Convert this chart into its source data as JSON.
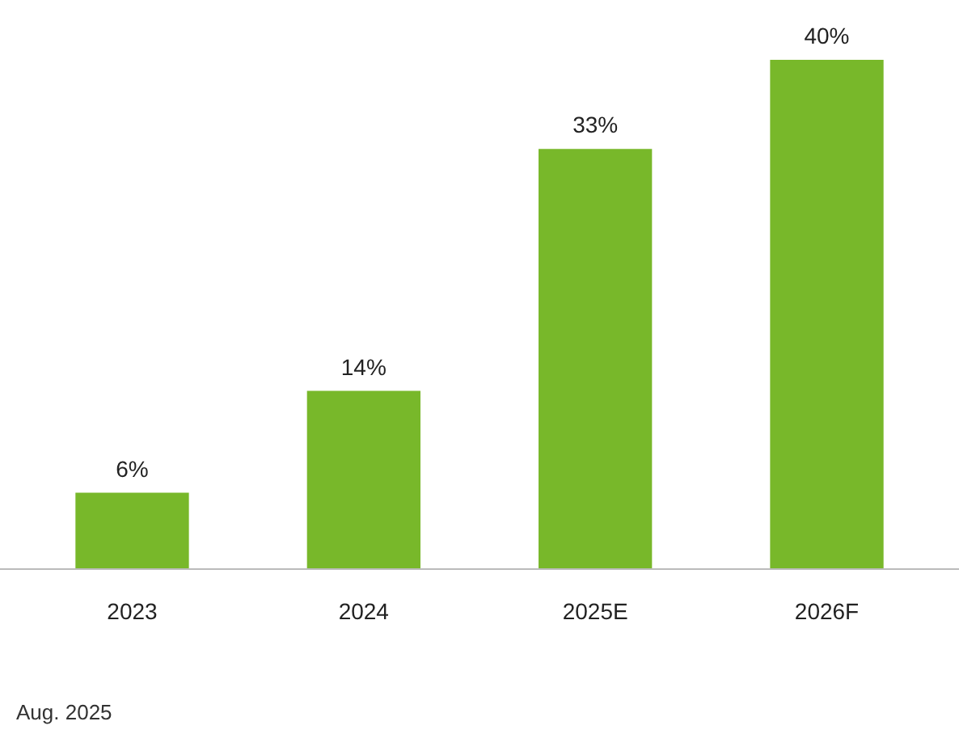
{
  "chart_data": {
    "type": "bar",
    "categories": [
      "2023",
      "2024",
      "2025E",
      "2026F"
    ],
    "values": [
      6,
      14,
      33,
      40
    ],
    "color": "#78b82a",
    "value_labels": [
      "6%",
      "14%",
      "33%",
      "40%"
    ],
    "annotations": [
      "Aug. 2025"
    ]
  }
}
